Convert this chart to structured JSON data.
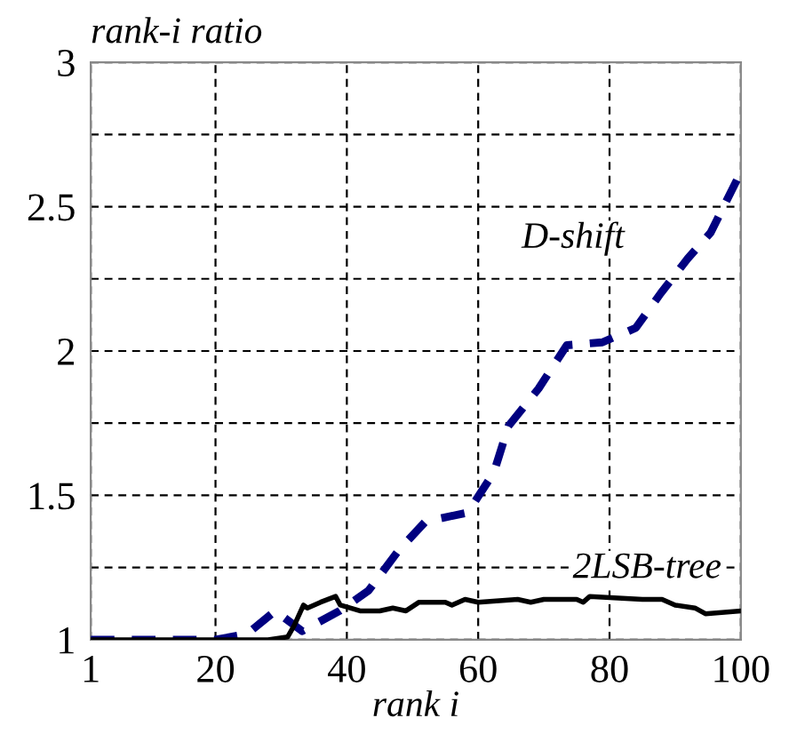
{
  "chart_data": {
    "type": "line",
    "xlabel": "rank i",
    "ylabel": "rank-i ratio",
    "xlim": [
      1,
      100
    ],
    "ylim": [
      1,
      3
    ],
    "xticks": [
      1,
      20,
      40,
      60,
      80,
      100
    ],
    "yticks": [
      1,
      {
        "value": 1.25,
        "label": null
      },
      1.5,
      {
        "value": 1.75,
        "label": null
      },
      2,
      {
        "value": 2.25,
        "label": null
      },
      2.5,
      {
        "value": 2.75,
        "label": null
      },
      3
    ],
    "grid": true,
    "legend": false,
    "marker": "none",
    "series": [
      {
        "name": "D-shift",
        "color": "#000080",
        "line_style": "dashed",
        "x": [
          1,
          20,
          24.8,
          29.1,
          33.2,
          38.9,
          43.3,
          47.9,
          52,
          58.4,
          62.4,
          64.6,
          69.2,
          73.5,
          78.9,
          84,
          87.8,
          91.9,
          95.4,
          100
        ],
        "values": [
          1,
          1,
          1.02,
          1.1,
          1.03,
          1.1,
          1.17,
          1.31,
          1.41,
          1.44,
          1.58,
          1.74,
          1.87,
          2.02,
          2.03,
          2.08,
          2.2,
          2.32,
          2.41,
          2.62
        ]
      },
      {
        "name": "2LSB-tree",
        "color": "#000000",
        "line_style": "solid",
        "x": [
          1,
          28,
          31,
          32,
          33.4,
          34,
          36,
          38.3,
          39,
          42,
          45,
          47,
          49,
          51,
          55,
          56,
          58,
          60,
          66,
          68,
          70,
          75,
          76,
          77,
          85,
          88,
          90,
          93,
          94.6,
          100
        ],
        "values": [
          1,
          1,
          1.01,
          1.05,
          1.12,
          1.11,
          1.13,
          1.15,
          1.12,
          1.1,
          1.1,
          1.11,
          1.1,
          1.13,
          1.13,
          1.12,
          1.14,
          1.13,
          1.14,
          1.13,
          1.14,
          1.14,
          1.13,
          1.15,
          1.14,
          1.14,
          1.12,
          1.11,
          1.09,
          1.1
        ]
      }
    ]
  }
}
